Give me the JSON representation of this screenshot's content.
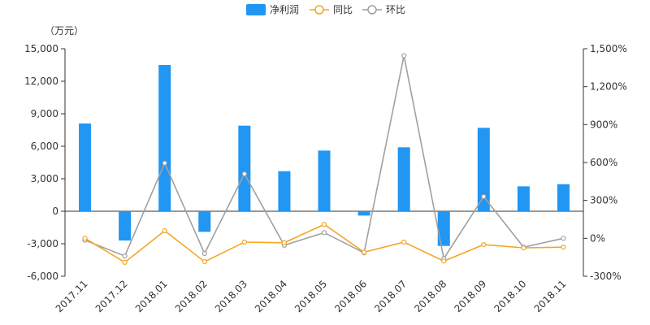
{
  "chart_data": {
    "type": "bar+line",
    "unit_label": "（万元）",
    "categories": [
      "2017.11",
      "2017.12",
      "2018.01",
      "2018.02",
      "2018.03",
      "2018.04",
      "2018.05",
      "2018.06",
      "2018.07",
      "2018.08",
      "2018.09",
      "2018.10",
      "2018.11"
    ],
    "left_axis": {
      "min": -6000,
      "max": 15000,
      "ticks": [
        "-6,000",
        "-3,000",
        "0",
        "3,000",
        "6,000",
        "9,000",
        "12,000",
        "15,000"
      ]
    },
    "right_axis": {
      "min": -300,
      "max": 1500,
      "ticks": [
        "-300%",
        "0%",
        "300%",
        "600%",
        "900%",
        "1,200%",
        "1,500%"
      ]
    },
    "series": [
      {
        "name": "净利润",
        "type": "bar",
        "axis": "left",
        "color": "#2196f3",
        "values": [
          8100,
          -2700,
          13500,
          -1900,
          7900,
          3700,
          5600,
          -400,
          5900,
          -3200,
          7700,
          2300,
          2500
        ]
      },
      {
        "name": "同比",
        "type": "line",
        "axis": "right",
        "color": "#f5a623",
        "values": [
          0,
          -190,
          60,
          -185,
          -30,
          -35,
          110,
          -110,
          -30,
          -180,
          -50,
          -75,
          -70
        ]
      },
      {
        "name": "环比",
        "type": "line",
        "axis": "right",
        "color": "#a0a0a0",
        "values": [
          -15,
          -140,
          595,
          -120,
          510,
          -55,
          45,
          -115,
          1445,
          -160,
          330,
          -70,
          0
        ]
      }
    ]
  }
}
